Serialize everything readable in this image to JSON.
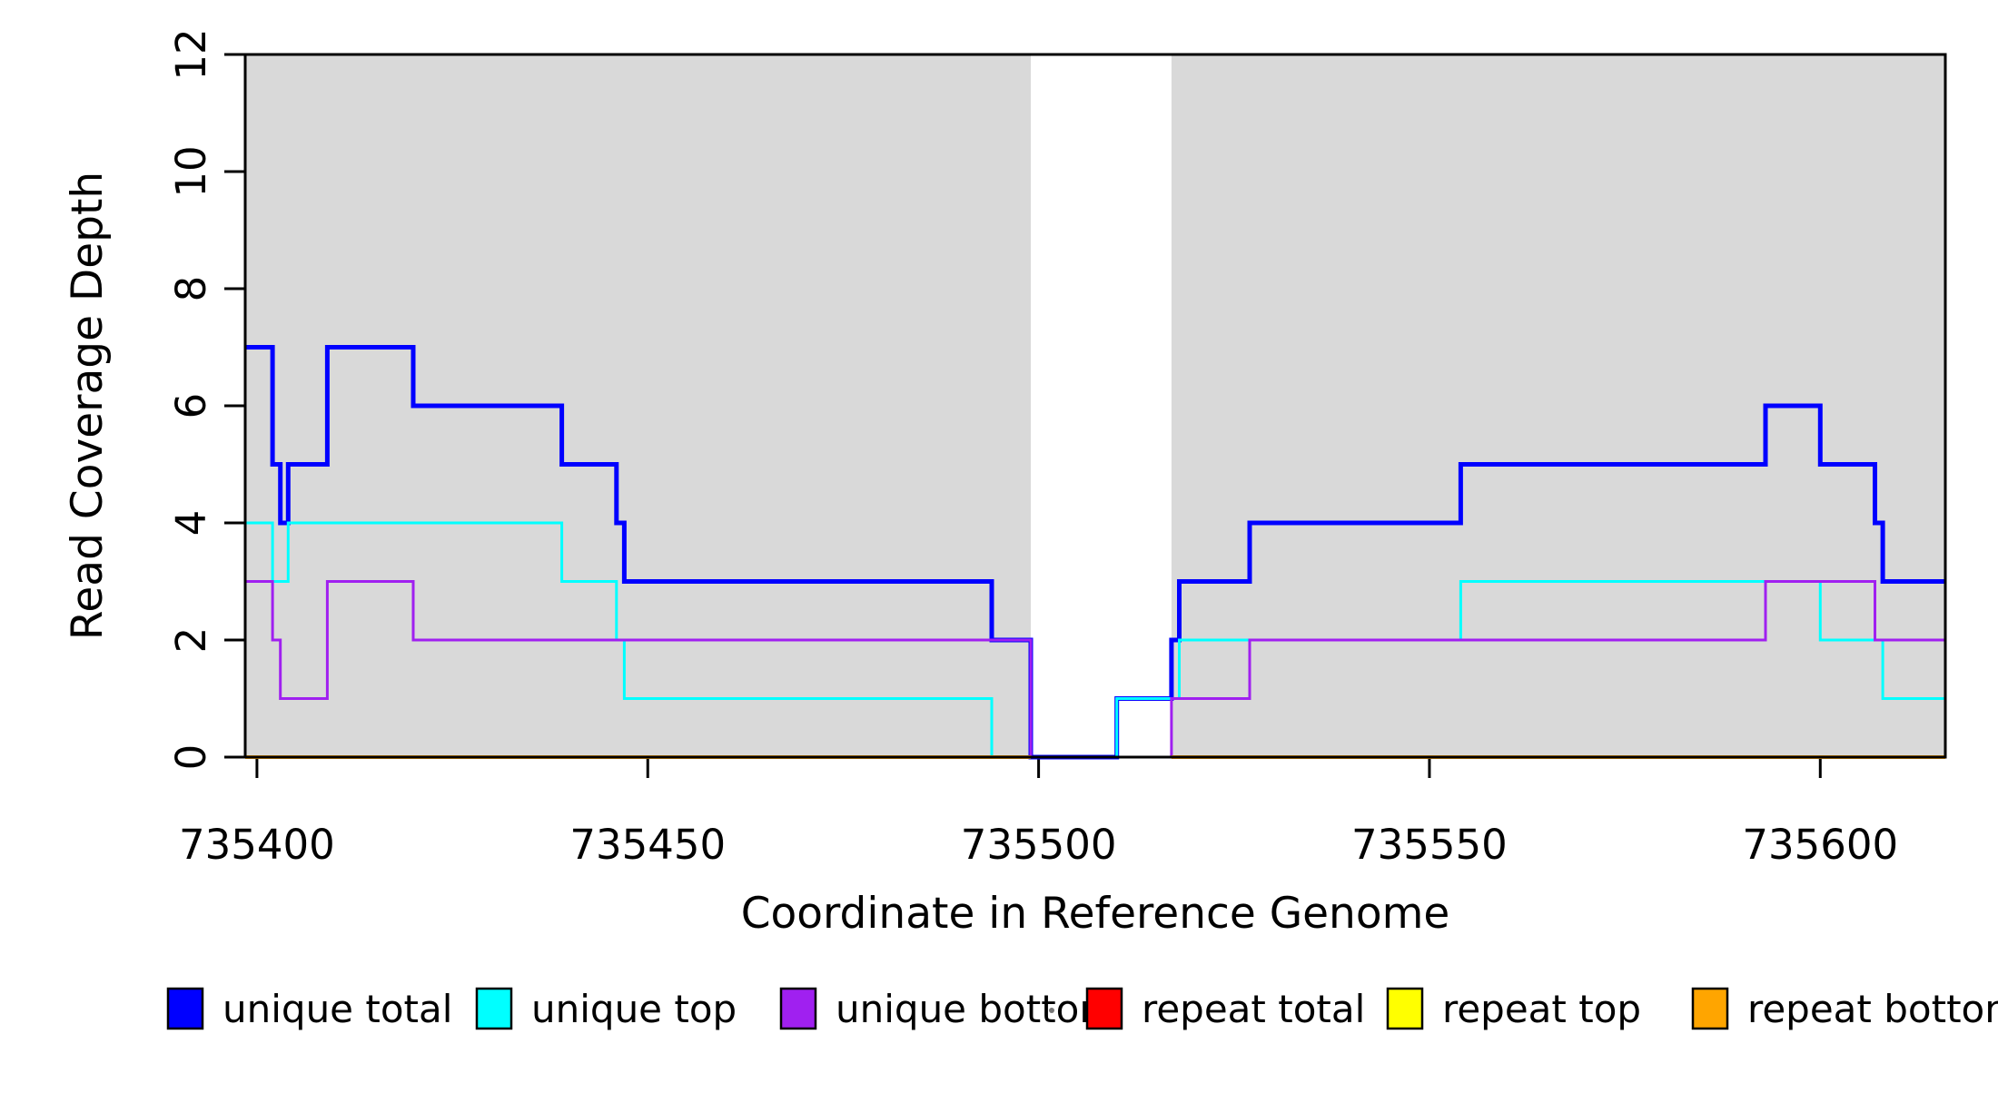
{
  "chart_data": {
    "type": "line",
    "subtype": "step-coverage",
    "title": "",
    "xlabel": "Coordinate in Reference Genome",
    "ylabel": "Read Coverage Depth",
    "xlim": [
      735398.5,
      735616
    ],
    "ylim": [
      0,
      12
    ],
    "x_ticks": [
      735400,
      735450,
      735500,
      735550,
      735600
    ],
    "y_ticks": [
      0,
      2,
      4,
      6,
      8,
      10,
      12
    ],
    "grid": false,
    "background_color": "#ffffff",
    "axis_color": "#000000",
    "shade_color": "#d9d9d9",
    "shaded_regions": [
      [
        735398.5,
        735499
      ],
      [
        735517,
        735616
      ]
    ],
    "legend_position": "bottom",
    "series": [
      {
        "name": "unique total",
        "color": "#0000ff",
        "width": 5,
        "end": 735616,
        "steps": [
          [
            735398.5,
            7
          ],
          [
            735402,
            5
          ],
          [
            735403,
            4
          ],
          [
            735404,
            5
          ],
          [
            735409,
            7
          ],
          [
            735420,
            6
          ],
          [
            735439,
            5
          ],
          [
            735446,
            4
          ],
          [
            735447,
            3
          ],
          [
            735494,
            2
          ],
          [
            735499,
            0
          ],
          [
            735510,
            1
          ],
          [
            735517,
            2
          ],
          [
            735518,
            3
          ],
          [
            735527,
            4
          ],
          [
            735554,
            5
          ],
          [
            735593,
            6
          ],
          [
            735600,
            5
          ],
          [
            735607,
            4
          ],
          [
            735608,
            3
          ]
        ]
      },
      {
        "name": "unique top",
        "color": "#00ffff",
        "width": 3,
        "end": 735616,
        "steps": [
          [
            735398.5,
            4
          ],
          [
            735402,
            3
          ],
          [
            735404,
            4
          ],
          [
            735439,
            3
          ],
          [
            735446,
            2
          ],
          [
            735447,
            1
          ],
          [
            735494,
            0
          ],
          [
            735510,
            1
          ],
          [
            735518,
            2
          ],
          [
            735554,
            3
          ],
          [
            735600,
            2
          ],
          [
            735608,
            1
          ]
        ]
      },
      {
        "name": "unique bottom",
        "color": "#a020f0",
        "width": 3,
        "end": 735616,
        "steps": [
          [
            735398.5,
            3
          ],
          [
            735402,
            2
          ],
          [
            735403,
            1
          ],
          [
            735409,
            3
          ],
          [
            735420,
            2
          ],
          [
            735499,
            0
          ],
          [
            735517,
            1
          ],
          [
            735527,
            2
          ],
          [
            735593,
            3
          ],
          [
            735607,
            2
          ]
        ]
      },
      {
        "name": "repeat total",
        "color": "#ff0000",
        "width": 3,
        "end": 735616,
        "steps": [
          [
            735398.5,
            0
          ]
        ]
      },
      {
        "name": "repeat top",
        "color": "#ffff00",
        "width": 3,
        "end": 735616,
        "steps": [
          [
            735398.5,
            0
          ]
        ]
      },
      {
        "name": "repeat bottom",
        "color": "#ffa500",
        "width": 4,
        "end": 735616,
        "steps": [
          [
            735398.5,
            0
          ]
        ],
        "clip_to_shaded_regions": true
      }
    ]
  }
}
